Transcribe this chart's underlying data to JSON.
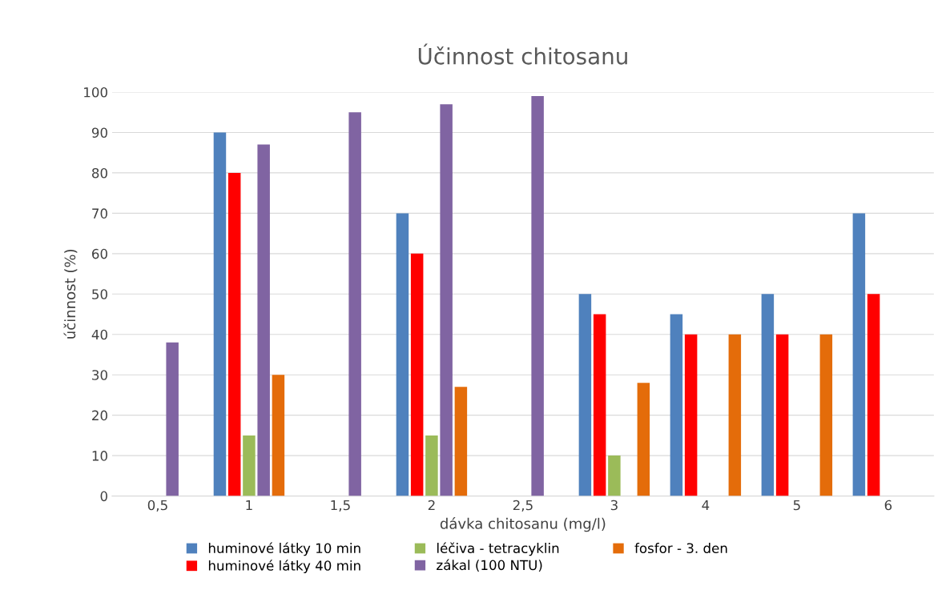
{
  "chart_data": {
    "type": "bar",
    "title": "Účinnost chitosanu",
    "xlabel": "dávka chitosanu (mg/l)",
    "ylabel": "účinnost (%)",
    "categories": [
      "0,5",
      "1",
      "1,5",
      "2",
      "2,5",
      "3",
      "4",
      "5",
      "6"
    ],
    "series": [
      {
        "name": "huminové látky 10 min",
        "color": "#4f81bd",
        "values": [
          null,
          90,
          null,
          70,
          null,
          50,
          45,
          50,
          70
        ]
      },
      {
        "name": "huminové látky 40 min",
        "color": "#ff0000",
        "values": [
          null,
          80,
          null,
          60,
          null,
          45,
          40,
          40,
          50
        ]
      },
      {
        "name": "léčiva - tetracyklin",
        "color": "#9bbb59",
        "values": [
          null,
          15,
          null,
          15,
          null,
          10,
          null,
          null,
          null
        ]
      },
      {
        "name": "zákal (100 NTU)",
        "color": "#8064a2",
        "values": [
          38,
          87,
          95,
          97,
          99,
          null,
          null,
          null,
          null
        ]
      },
      {
        "name": "fosfor - 3. den",
        "color": "#e46c0a",
        "values": [
          null,
          30,
          null,
          27,
          null,
          28,
          40,
          40,
          null
        ]
      }
    ],
    "ylim": [
      0,
      100
    ],
    "yticks": [
      0,
      10,
      20,
      30,
      40,
      50,
      60,
      70,
      80,
      90,
      100
    ],
    "grid": "y",
    "legend": "bottom"
  }
}
